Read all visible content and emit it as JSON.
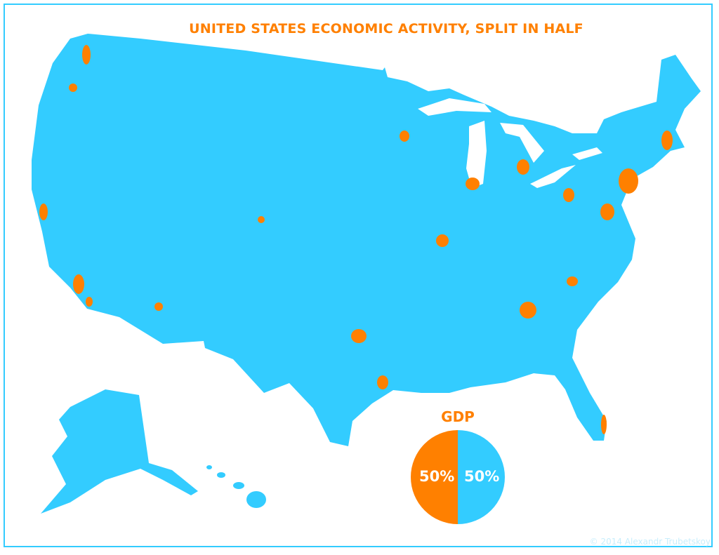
{
  "title": "UNITED STATES ECONOMIC ACTIVITY, SPLIT IN HALF",
  "pie": {
    "label": "GDP",
    "slices": [
      {
        "value": 50,
        "label": "50%",
        "color": "#ff8000"
      },
      {
        "value": 50,
        "label": "50%",
        "color": "#33ccff"
      }
    ]
  },
  "colors": {
    "land": "#33ccff",
    "metro": "#ff8000",
    "frame": "#33ccff"
  },
  "copyright": "© 2014 Alexandr Trubetskoy"
}
